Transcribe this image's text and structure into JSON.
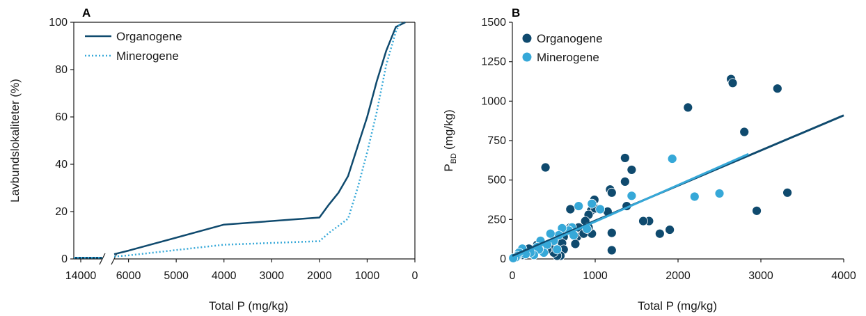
{
  "colors": {
    "organogene": "#0f4a6e",
    "minerogene": "#36a8d8",
    "axis": "#1a1a1a"
  },
  "chart_data": [
    {
      "panel": "A",
      "type": "line",
      "xlabel": "Total P (mg/kg)",
      "ylabel": "Lavbundslokaliteter (%)",
      "x_break": {
        "left_segment": [
          14000,
          14000
        ],
        "gap": true
      },
      "x_ticks": [
        "14000",
        "6000",
        "5000",
        "4000",
        "3000",
        "2000",
        "1000",
        "0"
      ],
      "y_ticks": [
        "0",
        "20",
        "40",
        "60",
        "80",
        "100"
      ],
      "xlim": [
        6300,
        0
      ],
      "ylim": [
        0,
        100
      ],
      "legend": "top-left",
      "series": [
        {
          "name": "Organogene",
          "style": "solid",
          "x": [
            14000,
            6000,
            4000,
            2000,
            1800,
            1600,
            1400,
            1000,
            800,
            600,
            400,
            200
          ],
          "y": [
            0.5,
            3.5,
            14.5,
            17.5,
            23,
            28,
            35,
            60,
            75,
            88,
            98,
            100
          ]
        },
        {
          "name": "Minerogene",
          "style": "dotted",
          "x": [
            14000,
            6000,
            4000,
            2000,
            1800,
            1600,
            1400,
            1200,
            1000,
            800,
            600,
            400,
            300
          ],
          "y": [
            0.5,
            1.5,
            6,
            7.5,
            11,
            14,
            17,
            30,
            45,
            62,
            82,
            96,
            100
          ]
        }
      ]
    },
    {
      "panel": "B",
      "type": "scatter",
      "xlabel": "Total P (mg/kg)",
      "ylabel": "P",
      "ylabel_sub": "BD",
      "ylabel_unit": "(mg/kg)",
      "x_ticks": [
        "0",
        "1000",
        "2000",
        "3000",
        "4000"
      ],
      "y_ticks": [
        "0",
        "250",
        "500",
        "750",
        "1000",
        "1250",
        "1500"
      ],
      "xlim": [
        0,
        4000
      ],
      "ylim": [
        0,
        1500
      ],
      "legend": "top-left",
      "series": [
        {
          "name": "Organogene",
          "points": [
            [
              400,
              580
            ],
            [
              2120,
              960
            ],
            [
              2640,
              1140
            ],
            [
              2660,
              1115
            ],
            [
              3200,
              1080
            ],
            [
              2800,
              805
            ],
            [
              3320,
              420
            ],
            [
              2950,
              305
            ],
            [
              1900,
              185
            ],
            [
              1780,
              160
            ],
            [
              1650,
              240
            ],
            [
              1580,
              240
            ],
            [
              1360,
              640
            ],
            [
              1360,
              490
            ],
            [
              1440,
              565
            ],
            [
              1180,
              440
            ],
            [
              1200,
              420
            ],
            [
              1200,
              165
            ],
            [
              1200,
              55
            ],
            [
              1380,
              335
            ],
            [
              1150,
              300
            ],
            [
              990,
              375
            ],
            [
              950,
              305
            ],
            [
              920,
              280
            ],
            [
              880,
              240
            ],
            [
              960,
              160
            ],
            [
              920,
              200
            ],
            [
              800,
              200
            ],
            [
              780,
              140
            ],
            [
              760,
              95
            ],
            [
              700,
              315
            ],
            [
              620,
              140
            ],
            [
              600,
              100
            ],
            [
              620,
              60
            ],
            [
              580,
              20
            ],
            [
              540,
              20
            ],
            [
              500,
              40
            ],
            [
              460,
              75
            ],
            [
              420,
              60
            ],
            [
              380,
              40
            ],
            [
              340,
              100
            ],
            [
              300,
              90
            ],
            [
              250,
              60
            ],
            [
              200,
              65
            ],
            [
              160,
              40
            ],
            [
              120,
              25
            ],
            [
              60,
              15
            ],
            [
              20,
              5
            ],
            [
              700,
              200
            ],
            [
              860,
              160
            ],
            [
              1000,
              320
            ]
          ]
        },
        {
          "name": "Minerogene",
          "points": [
            [
              1930,
              635
            ],
            [
              2500,
              415
            ],
            [
              2200,
              395
            ],
            [
              1440,
              400
            ],
            [
              1060,
              315
            ],
            [
              960,
              350
            ],
            [
              800,
              335
            ],
            [
              720,
              200
            ],
            [
              680,
              180
            ],
            [
              740,
              150
            ],
            [
              600,
              195
            ],
            [
              560,
              150
            ],
            [
              500,
              115
            ],
            [
              460,
              160
            ],
            [
              420,
              90
            ],
            [
              380,
              40
            ],
            [
              340,
              115
            ],
            [
              300,
              75
            ],
            [
              320,
              60
            ],
            [
              260,
              25
            ],
            [
              220,
              40
            ],
            [
              160,
              30
            ],
            [
              120,
              65
            ],
            [
              80,
              40
            ],
            [
              60,
              20
            ],
            [
              40,
              10
            ],
            [
              10,
              5
            ],
            [
              540,
              60
            ],
            [
              900,
              190
            ]
          ]
        }
      ],
      "regression": [
        {
          "series": "Organogene",
          "x": [
            0,
            4000
          ],
          "y": [
            20,
            910
          ]
        },
        {
          "series": "Minerogene",
          "x": [
            0,
            2850
          ],
          "y": [
            5,
            665
          ]
        }
      ]
    }
  ]
}
